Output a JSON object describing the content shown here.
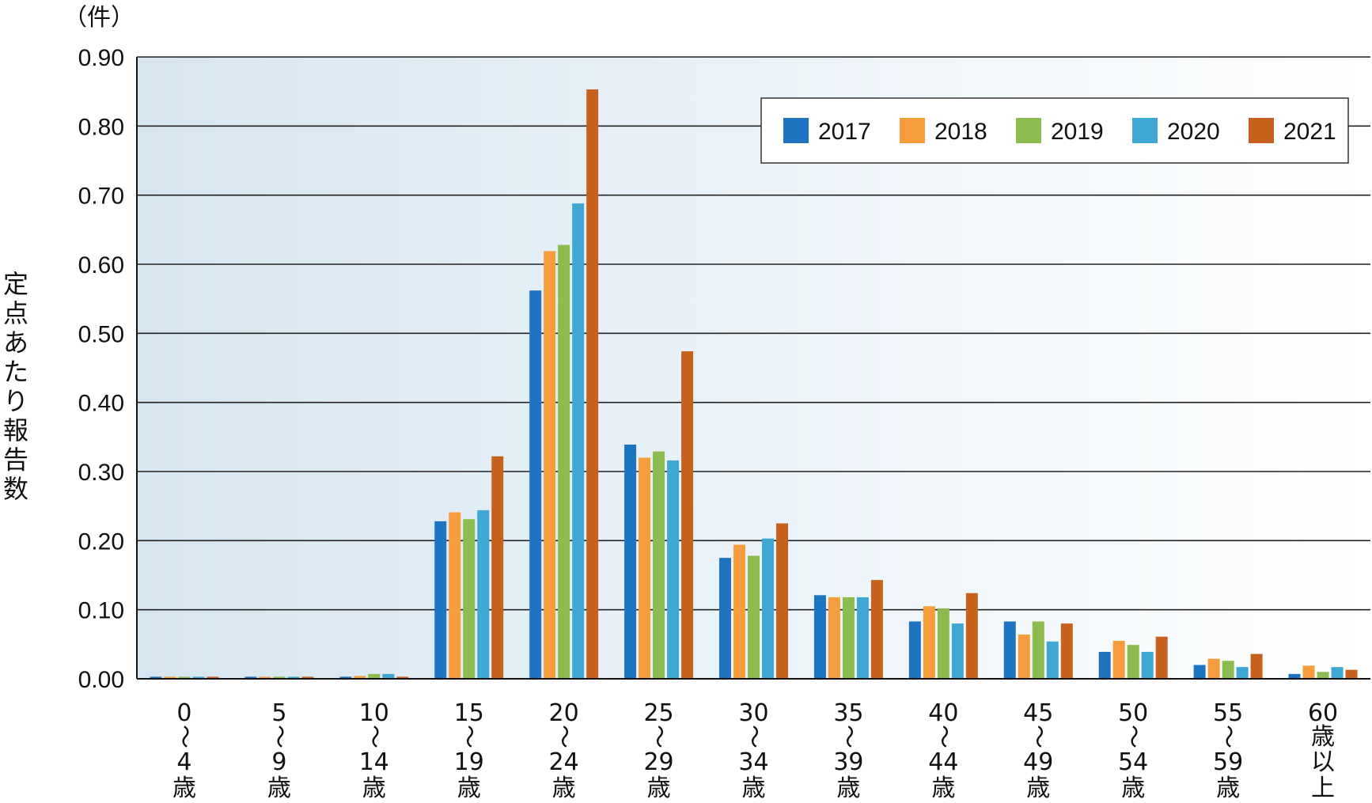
{
  "chart_data": {
    "type": "bar",
    "unit_label": "（件）",
    "ylabel": "定点あたり報告数",
    "ylim": [
      0,
      0.9
    ],
    "y_ticks": [
      "0.00",
      "0.10",
      "0.20",
      "0.30",
      "0.40",
      "0.50",
      "0.60",
      "0.70",
      "0.80",
      "0.90"
    ],
    "grid": true,
    "legend_position": "top-right",
    "categories": [
      [
        "0",
        "〜",
        "4",
        "歳"
      ],
      [
        "5",
        "〜",
        "9",
        "歳"
      ],
      [
        "10",
        "〜",
        "14",
        "歳"
      ],
      [
        "15",
        "〜",
        "19",
        "歳"
      ],
      [
        "20",
        "〜",
        "24",
        "歳"
      ],
      [
        "25",
        "〜",
        "29",
        "歳"
      ],
      [
        "30",
        "〜",
        "34",
        "歳"
      ],
      [
        "35",
        "〜",
        "39",
        "歳"
      ],
      [
        "40",
        "〜",
        "44",
        "歳"
      ],
      [
        "45",
        "〜",
        "49",
        "歳"
      ],
      [
        "50",
        "〜",
        "54",
        "歳"
      ],
      [
        "55",
        "〜",
        "59",
        "歳"
      ],
      [
        "60",
        "歳",
        "以",
        "上"
      ]
    ],
    "series": [
      {
        "name": "2017",
        "color": "#1f74c1",
        "values": [
          0.003,
          0.003,
          0.003,
          0.228,
          0.562,
          0.339,
          0.175,
          0.121,
          0.083,
          0.083,
          0.039,
          0.02,
          0.007
        ]
      },
      {
        "name": "2018",
        "color": "#f59c3c",
        "values": [
          0.003,
          0.003,
          0.004,
          0.241,
          0.619,
          0.32,
          0.194,
          0.118,
          0.105,
          0.064,
          0.055,
          0.029,
          0.019
        ]
      },
      {
        "name": "2019",
        "color": "#8cbb4f",
        "values": [
          0.003,
          0.003,
          0.007,
          0.231,
          0.628,
          0.329,
          0.178,
          0.118,
          0.102,
          0.083,
          0.049,
          0.026,
          0.01
        ]
      },
      {
        "name": "2020",
        "color": "#3fa7d3",
        "values": [
          0.003,
          0.003,
          0.007,
          0.244,
          0.688,
          0.316,
          0.203,
          0.118,
          0.08,
          0.054,
          0.039,
          0.017,
          0.017
        ]
      },
      {
        "name": "2021",
        "color": "#c7621e",
        "values": [
          0.003,
          0.003,
          0.003,
          0.322,
          0.853,
          0.474,
          0.225,
          0.143,
          0.124,
          0.08,
          0.061,
          0.036,
          0.013
        ]
      }
    ]
  }
}
